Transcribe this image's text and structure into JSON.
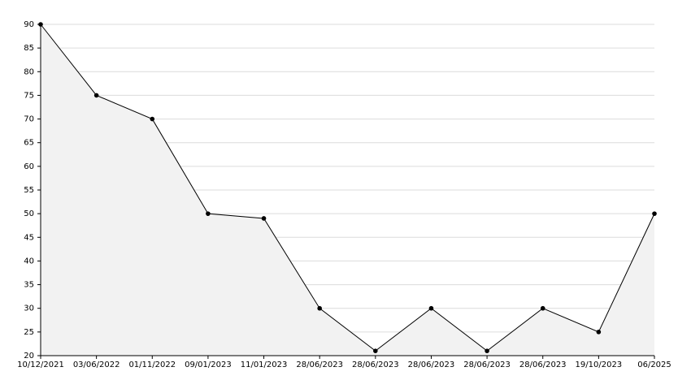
{
  "chart_data": {
    "type": "area",
    "categories": [
      "10/12/2021",
      "03/06/2022",
      "01/11/2022",
      "09/01/2023",
      "11/01/2023",
      "28/06/2023",
      "28/06/2023",
      "28/06/2023",
      "28/06/2023",
      "28/06/2023",
      "19/10/2023",
      "06/2025"
    ],
    "values": [
      90,
      75,
      70,
      50,
      49,
      30,
      21,
      30,
      21,
      30,
      25,
      50
    ],
    "color": "#000000",
    "fill": "#f2f2f2",
    "ylim": [
      20,
      90
    ],
    "yticks": [
      20,
      25,
      30,
      35,
      40,
      45,
      50,
      55,
      60,
      65,
      70,
      75,
      80,
      85,
      90
    ],
    "grid": true
  }
}
